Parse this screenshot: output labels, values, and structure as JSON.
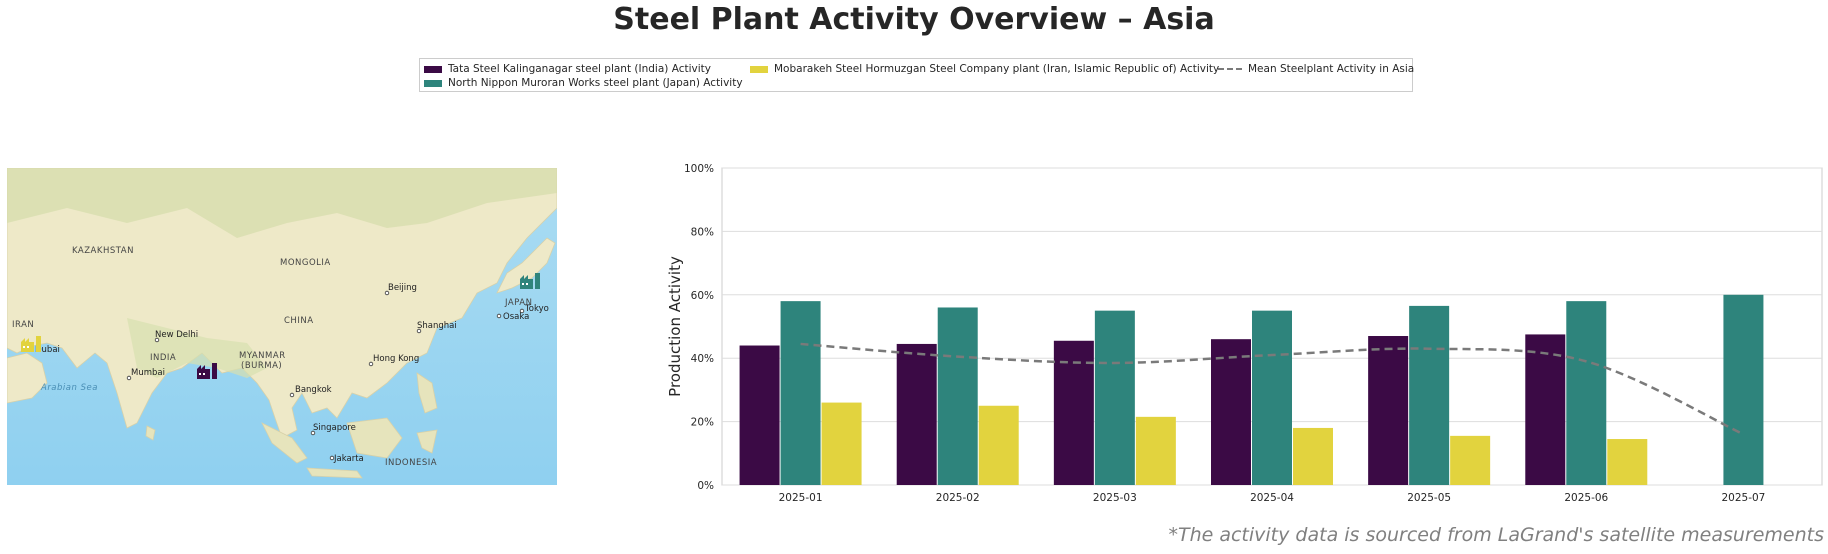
{
  "title": "Steel Plant Activity Overview – Asia",
  "footnote": "*The activity data is sourced from LaGrand's satellite measurements",
  "legend": {
    "items": [
      {
        "label": "Tata Steel Kalinganagar steel plant (India) Activity",
        "color": "#3b0a45"
      },
      {
        "label": "North Nippon Muroran Works steel plant (Japan) Activity",
        "color": "#2e847c"
      },
      {
        "label": "Mobarakeh Steel Hormuzgan Steel Company plant (Iran, Islamic Republic of) Activity",
        "color": "#e2d33e"
      },
      {
        "label": "Mean Steelplant Activity in Asia",
        "color": "#7a7a7a"
      }
    ]
  },
  "map": {
    "region_labels": [
      "KAZAKHSTAN",
      "MONGOLIA",
      "CHINA",
      "IRAN",
      "INDIA",
      "MYANMAR",
      "(BURMA)",
      "JAPAN",
      "INDONESIA",
      "Arabian Sea"
    ],
    "cities": [
      "Beijing",
      "Shanghai",
      "Osaka",
      "Tokyo",
      "New Delhi",
      "Mumbai",
      "Dubai",
      "Bangkok",
      "Hong Kong",
      "Singapore",
      "Jakarta"
    ],
    "markers": [
      {
        "plant": "Tata Steel Kalinganagar",
        "icon": "factory-icon",
        "color": "#3b0a45"
      },
      {
        "plant": "North Nippon Muroran Works",
        "icon": "factory-icon",
        "color": "#2e847c"
      },
      {
        "plant": "Mobarakeh Steel Hormuzgan",
        "icon": "factory-icon",
        "color": "#e2d33e"
      }
    ]
  },
  "chart_data": {
    "type": "bar",
    "title": "",
    "xlabel": "",
    "ylabel": "Production Activity",
    "ylim": [
      0,
      100
    ],
    "yticks": [
      "0%",
      "20%",
      "40%",
      "60%",
      "80%",
      "100%"
    ],
    "grid": true,
    "categories": [
      "2025-01",
      "2025-02",
      "2025-03",
      "2025-04",
      "2025-05",
      "2025-06",
      "2025-07"
    ],
    "series": [
      {
        "name": "Tata Steel Kalinganagar steel plant (India) Activity",
        "color": "#3b0a45",
        "values": [
          44,
          44.5,
          45.5,
          46,
          47,
          47.5,
          null
        ]
      },
      {
        "name": "North Nippon Muroran Works steel plant (Japan) Activity",
        "color": "#2e847c",
        "values": [
          58,
          56,
          55,
          55,
          56.5,
          58,
          60
        ]
      },
      {
        "name": "Mobarakeh Steel Hormuzgan Steel Company plant (Iran, Islamic Republic of) Activity",
        "color": "#e2d33e",
        "values": [
          26,
          25,
          21.5,
          18,
          15.5,
          14.5,
          null
        ]
      }
    ],
    "mean_line": {
      "name": "Mean Steelplant Activity in Asia",
      "style": "dashed",
      "color": "#7a7a7a",
      "values": [
        44.5,
        40.5,
        38.5,
        41,
        43,
        39,
        16
      ]
    }
  }
}
